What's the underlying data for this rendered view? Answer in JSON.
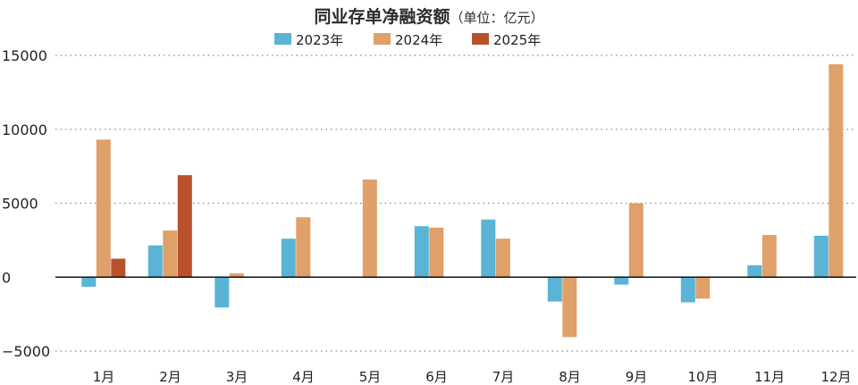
{
  "title": "同业存单净融资额",
  "unit": "（单位：亿元）",
  "chart_data": {
    "type": "bar",
    "title": "同业存单净融资额（单位：亿元）",
    "xlabel": "",
    "ylabel": "",
    "ylim": [
      -5000,
      15000
    ],
    "yticks": [
      15000,
      10000,
      5000,
      0,
      -5000
    ],
    "ytick_labels": [
      "15000",
      "10000",
      "5000",
      "0",
      "−5000"
    ],
    "grid": true,
    "legend_position": "top-center",
    "categories": [
      "1月",
      "2月",
      "3月",
      "4月",
      "5月",
      "6月",
      "7月",
      "8月",
      "9月",
      "10月",
      "11月",
      "12月"
    ],
    "series": [
      {
        "name": "2023年",
        "color": "#5ab4d6",
        "values": [
          -650,
          2150,
          -2050,
          2600,
          null,
          3450,
          3900,
          -1650,
          -500,
          -1700,
          800,
          2800
        ]
      },
      {
        "name": "2024年",
        "color": "#dfa06a",
        "values": [
          9300,
          3150,
          250,
          4050,
          6600,
          3350,
          2600,
          -4050,
          5000,
          -1450,
          2850,
          14400
        ]
      },
      {
        "name": "2025年",
        "color": "#b9512a",
        "values": [
          1250,
          6900,
          null,
          null,
          null,
          null,
          null,
          null,
          null,
          null,
          null,
          null
        ]
      }
    ]
  }
}
